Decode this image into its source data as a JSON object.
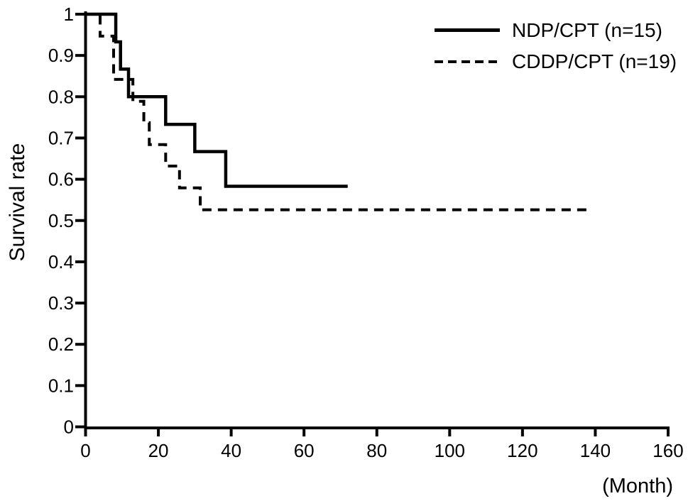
{
  "chart_data": {
    "type": "line",
    "subtype": "kaplan_meier_step",
    "title": "",
    "xlabel": "(Month)",
    "ylabel": "Survival rate",
    "xlim": [
      0,
      160
    ],
    "ylim": [
      0,
      1
    ],
    "x_ticks": [
      0,
      20,
      40,
      60,
      80,
      100,
      120,
      140,
      160
    ],
    "x_tick_labels": [
      "0",
      "20",
      "40",
      "60",
      "80",
      "100",
      "120",
      "140",
      "160"
    ],
    "y_ticks": [
      0,
      0.1,
      0.2,
      0.3,
      0.4,
      0.5,
      0.6,
      0.7,
      0.8,
      0.9,
      1
    ],
    "y_tick_labels": [
      "0",
      "0.1",
      "0.2",
      "0.3",
      "0.4",
      "0.5",
      "0.6",
      "0.7",
      "0.8",
      "0.9",
      "1"
    ],
    "grid": false,
    "legend_position": "top-right",
    "line_color": "#000000",
    "background_color": "#ffffff",
    "series": [
      {
        "name": "NDP/CPT (n=15)",
        "style": "solid",
        "n": 15,
        "points": [
          [
            0,
            1
          ],
          [
            8.3,
            1
          ],
          [
            8.3,
            0.933
          ],
          [
            9.6,
            0.933
          ],
          [
            9.6,
            0.867
          ],
          [
            11.8,
            0.867
          ],
          [
            11.8,
            0.8
          ],
          [
            22,
            0.8
          ],
          [
            22,
            0.733
          ],
          [
            30,
            0.733
          ],
          [
            30,
            0.667
          ],
          [
            38.5,
            0.667
          ],
          [
            38.5,
            0.583
          ],
          [
            72,
            0.583
          ]
        ]
      },
      {
        "name": "CDDP/CPT (n=19)",
        "style": "dashed",
        "n": 19,
        "points": [
          [
            0,
            1
          ],
          [
            4,
            1
          ],
          [
            4,
            0.947
          ],
          [
            7.7,
            0.947
          ],
          [
            7.7,
            0.842
          ],
          [
            13,
            0.842
          ],
          [
            13,
            0.789
          ],
          [
            16,
            0.789
          ],
          [
            16,
            0.737
          ],
          [
            17.5,
            0.737
          ],
          [
            17.5,
            0.684
          ],
          [
            22,
            0.684
          ],
          [
            22,
            0.632
          ],
          [
            25.8,
            0.632
          ],
          [
            25.8,
            0.579
          ],
          [
            31.5,
            0.579
          ],
          [
            31.5,
            0.526
          ],
          [
            139,
            0.526
          ]
        ]
      }
    ]
  }
}
